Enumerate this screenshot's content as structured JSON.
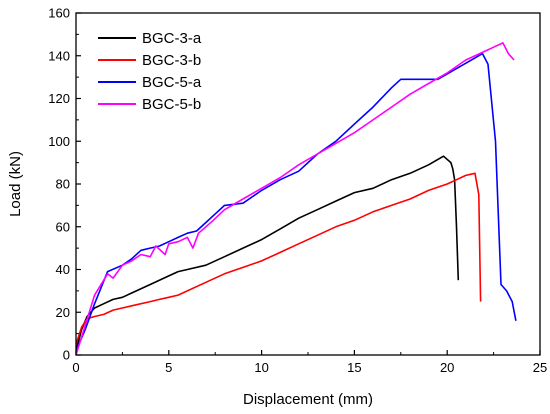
{
  "chart_data": {
    "type": "line",
    "xlabel": "Displacement (mm)",
    "ylabel": "Load (kN)",
    "xlim": [
      0,
      25
    ],
    "ylim": [
      0,
      160
    ],
    "x_ticks": [
      0,
      5,
      10,
      15,
      20,
      25
    ],
    "y_ticks": [
      0,
      20,
      40,
      60,
      80,
      100,
      120,
      140,
      160
    ],
    "grid": false,
    "legend_position": "top-left",
    "series": [
      {
        "name": "BGC-3-a",
        "color": "#000000",
        "x": [
          0,
          0.3,
          0.6,
          1.0,
          1.5,
          2.0,
          2.5,
          3.0,
          4.0,
          5.0,
          5.5,
          6.0,
          7.0,
          8.0,
          9.0,
          10.0,
          11.0,
          12.0,
          13.0,
          14.0,
          15.0,
          16.0,
          17.0,
          18.0,
          19.0,
          19.8,
          20.2,
          20.3,
          20.4,
          20.5,
          20.6
        ],
        "y": [
          2,
          12,
          18,
          22,
          24,
          26,
          27,
          29,
          33,
          37,
          39,
          40,
          42,
          46,
          50,
          54,
          59,
          64,
          68,
          72,
          76,
          78,
          82,
          85,
          89,
          93,
          90,
          87,
          82,
          60,
          35
        ]
      },
      {
        "name": "BGC-3-b",
        "color": "#ff0000",
        "x": [
          0,
          0.3,
          0.6,
          1.0,
          1.5,
          2.0,
          3.0,
          4.0,
          4.5,
          5.0,
          5.5,
          7.0,
          8.0,
          9.0,
          10.0,
          11.0,
          12.0,
          13.0,
          14.0,
          15.0,
          16.0,
          17.0,
          18.0,
          19.0,
          20.0,
          20.5,
          21.0,
          21.5,
          21.7,
          21.8
        ],
        "y": [
          5,
          13,
          17,
          18,
          19,
          21,
          23,
          25,
          26,
          27,
          28,
          34,
          38,
          41,
          44,
          48,
          52,
          56,
          60,
          63,
          67,
          70,
          73,
          77,
          80,
          82,
          84,
          85,
          75,
          25
        ]
      },
      {
        "name": "BGC-5-a",
        "color": "#0000ff",
        "x": [
          0,
          0.5,
          1.0,
          1.7,
          2.5,
          3.0,
          3.5,
          4.0,
          4.5,
          5.0,
          5.5,
          6.0,
          6.5,
          7.0,
          7.5,
          8.0,
          9.0,
          10.0,
          11.0,
          12.0,
          13.0,
          14.0,
          15.0,
          16.0,
          17.0,
          17.5,
          18.5,
          19.5,
          20.5,
          21.5,
          21.9,
          22.2,
          22.6,
          22.9,
          23.2,
          23.5,
          23.7
        ],
        "y": [
          2,
          12,
          24,
          39,
          42,
          45,
          49,
          50,
          51,
          53,
          55,
          57,
          58,
          62,
          66,
          70,
          71,
          77,
          82,
          86,
          94,
          100,
          108,
          116,
          125,
          129,
          129,
          129,
          134,
          139,
          141,
          136,
          100,
          33,
          30,
          25,
          16
        ]
      },
      {
        "name": "BGC-5-b",
        "color": "#ff00ff",
        "x": [
          0,
          0.5,
          1.0,
          1.7,
          2.0,
          2.5,
          3.0,
          3.5,
          4.0,
          4.3,
          4.8,
          5.0,
          5.5,
          6.0,
          6.3,
          6.6,
          7.0,
          7.4,
          8.0,
          9.0,
          10.0,
          11.0,
          12.0,
          13.0,
          14.0,
          15.0,
          16.0,
          17.0,
          18.0,
          19.0,
          20.0,
          21.0,
          22.0,
          22.5,
          23.0,
          23.3,
          23.6
        ],
        "y": [
          0,
          14,
          28,
          38,
          36,
          42,
          44,
          47,
          46,
          51,
          47,
          52,
          53,
          55,
          50,
          57,
          60,
          63,
          68,
          73,
          78,
          83,
          89,
          94,
          99,
          104,
          110,
          116,
          122,
          127,
          132,
          138,
          142,
          144,
          146,
          141,
          138
        ]
      }
    ]
  }
}
